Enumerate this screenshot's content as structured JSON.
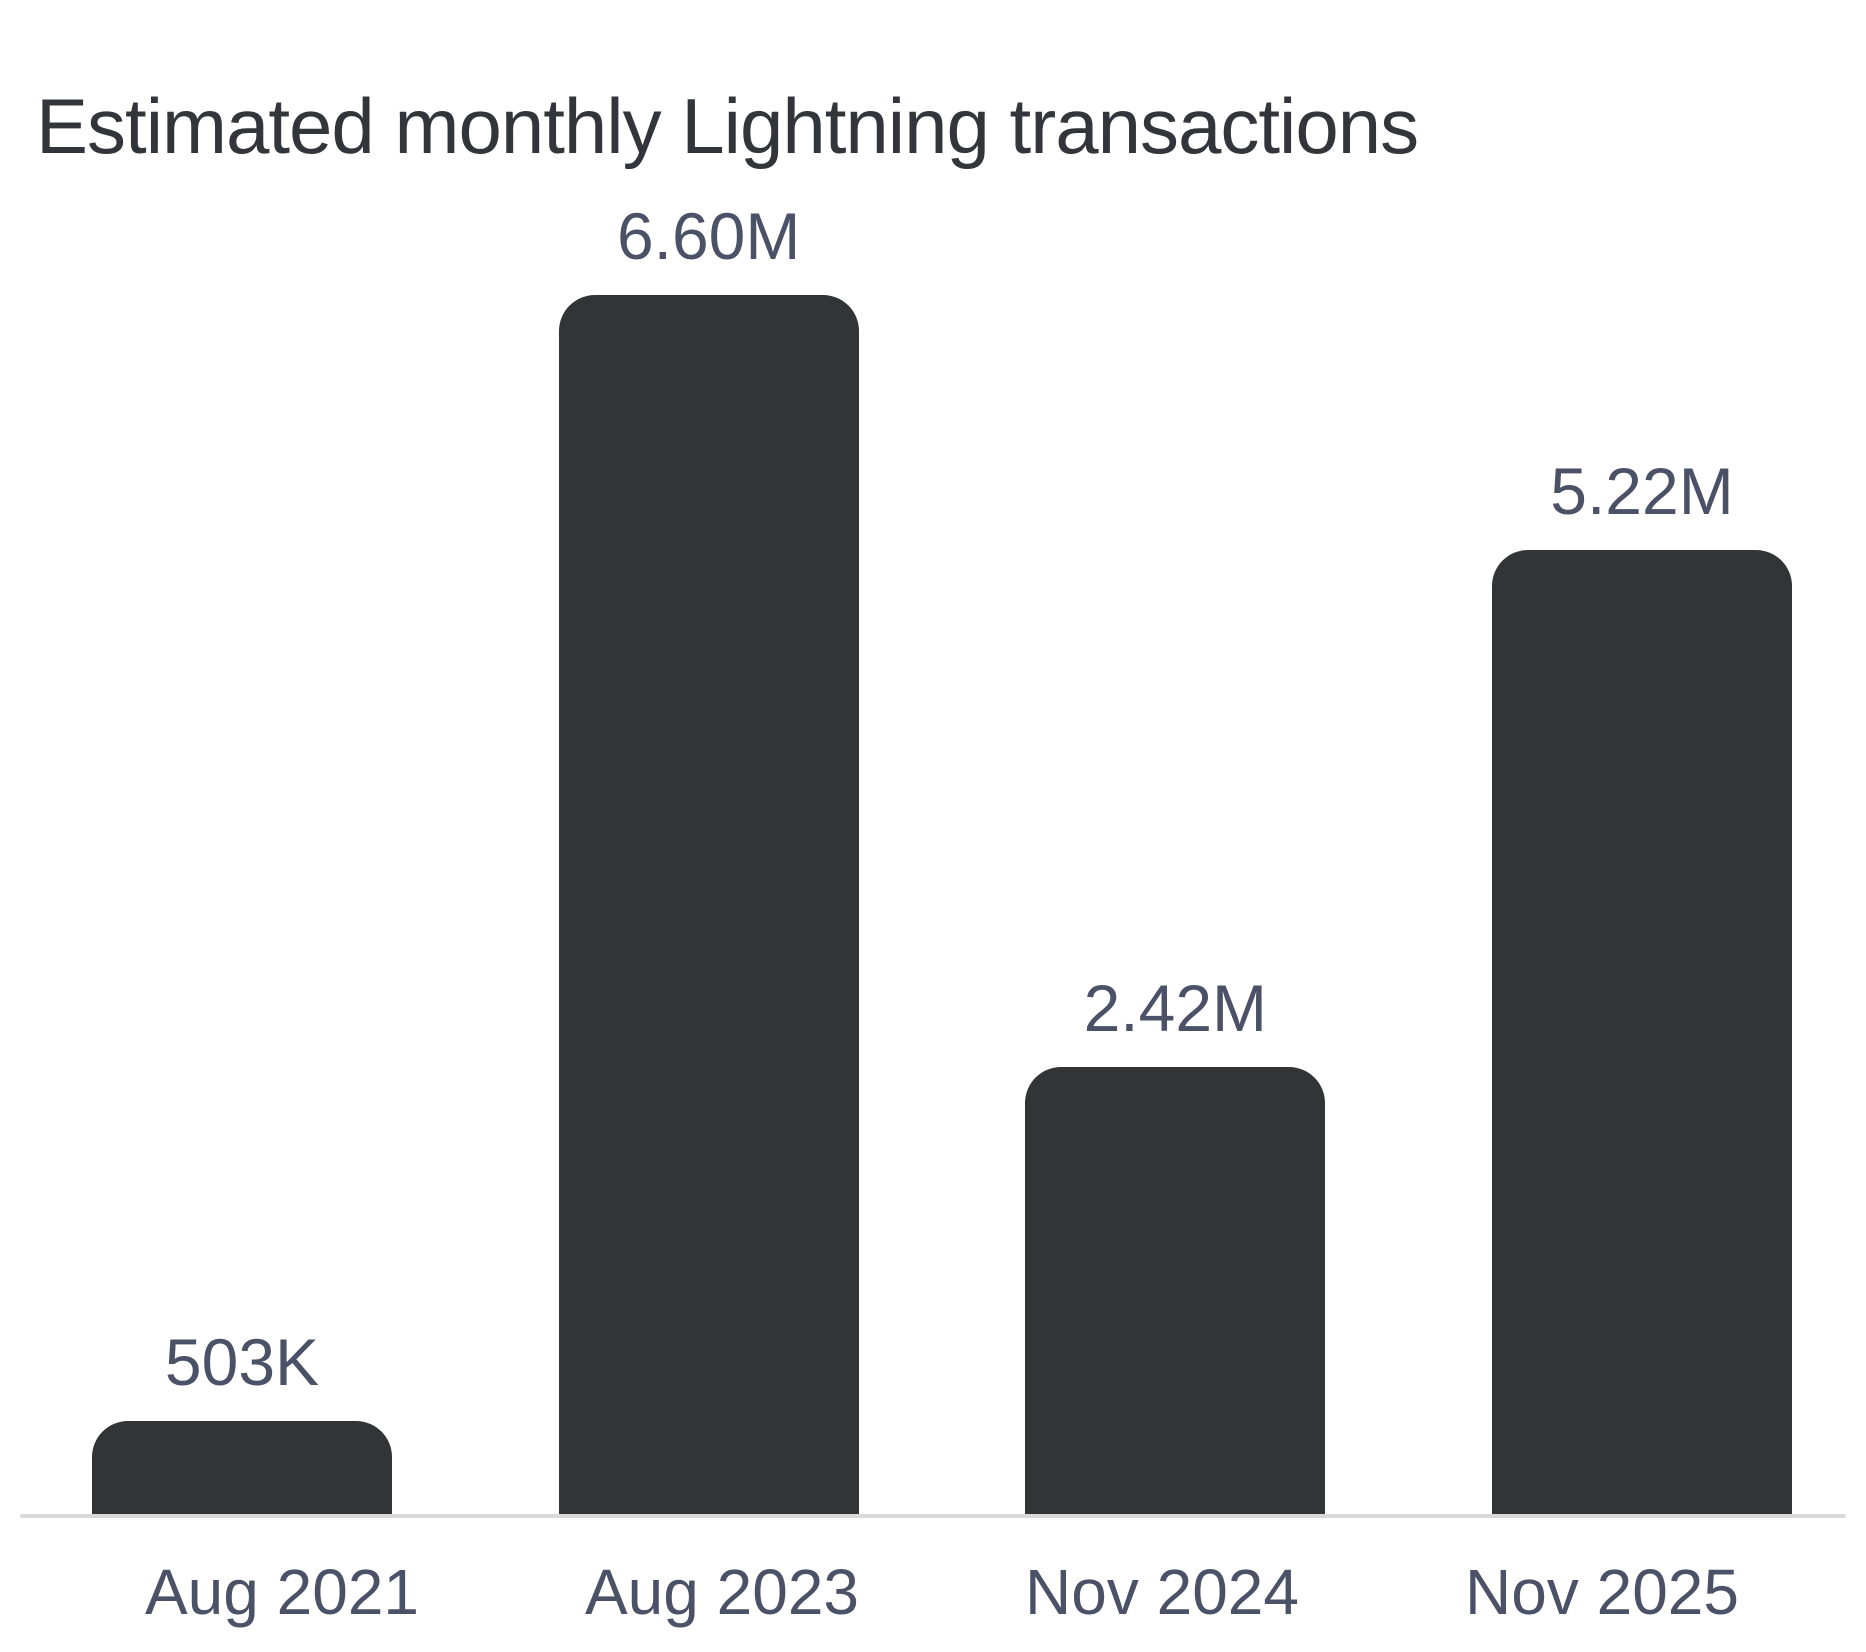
{
  "page": {
    "background": "#ffffff"
  },
  "chart_data": {
    "type": "bar",
    "title": "Estimated monthly Lightning transactions",
    "categories": [
      "Aug 2021",
      "Aug 2023",
      "Nov 2024",
      "Nov 2025"
    ],
    "values": [
      503000,
      6600000,
      2420000,
      5220000
    ],
    "value_labels": [
      "503K",
      "6.60M",
      "2.42M",
      "5.22M"
    ],
    "xlabel": "",
    "ylabel": "",
    "ylim": [
      0,
      6600000
    ],
    "grid": false,
    "legend": false,
    "y_axis_shown": false,
    "baseline_shown": true,
    "bar_color": "#333436",
    "title_color": "#32353a",
    "label_color": "#4b5166",
    "axis_line_color": "#d9d9d9"
  }
}
